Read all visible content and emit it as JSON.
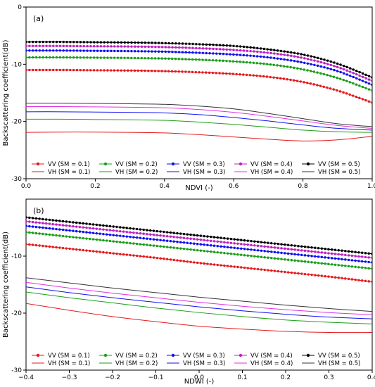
{
  "chart_data": [
    {
      "type": "line",
      "panel_label": "(a)",
      "xlabel": "NDVI (-)",
      "ylabel": "Backscattering coefficient(dB)",
      "xlim": [
        0,
        1
      ],
      "ylim": [
        -30,
        0
      ],
      "xticks": [
        0,
        0.2,
        0.4,
        0.6,
        0.8,
        1
      ],
      "xtick_labels": [
        "0.0",
        "0.2",
        "0.4",
        "0.6",
        "0.8",
        "1.0"
      ],
      "yticks": [
        -30,
        -20,
        -10,
        0
      ],
      "ytick_labels": [
        "-30",
        "-20",
        "-10",
        "0"
      ],
      "grid": false,
      "legend_position": "bottom",
      "series": [
        {
          "name": "VV (SM = 0.1)",
          "color": "#e41a1c",
          "marker": true,
          "x": [
            0,
            0.1,
            0.2,
            0.3,
            0.4,
            0.5,
            0.6,
            0.7,
            0.8,
            0.9,
            1.0
          ],
          "y": [
            -11.0,
            -11.0,
            -11.05,
            -11.1,
            -11.2,
            -11.4,
            -11.7,
            -12.2,
            -13.1,
            -14.6,
            -16.7
          ]
        },
        {
          "name": "VV (SM = 0.2)",
          "color": "#1a9e1a",
          "marker": true,
          "x": [
            0,
            0.1,
            0.2,
            0.3,
            0.4,
            0.5,
            0.6,
            0.7,
            0.8,
            0.9,
            1.0
          ],
          "y": [
            -8.8,
            -8.8,
            -8.85,
            -8.9,
            -9.0,
            -9.2,
            -9.5,
            -10.0,
            -10.9,
            -12.4,
            -14.6
          ]
        },
        {
          "name": "VV (SM = 0.3)",
          "color": "#1010ee",
          "marker": true,
          "x": [
            0,
            0.1,
            0.2,
            0.3,
            0.4,
            0.5,
            0.6,
            0.7,
            0.8,
            0.9,
            1.0
          ],
          "y": [
            -7.6,
            -7.6,
            -7.65,
            -7.7,
            -7.8,
            -8.0,
            -8.3,
            -8.8,
            -9.7,
            -11.2,
            -13.6
          ]
        },
        {
          "name": "VV (SM = 0.4)",
          "color": "#c020c0",
          "marker": true,
          "x": [
            0,
            0.1,
            0.2,
            0.3,
            0.4,
            0.5,
            0.6,
            0.7,
            0.8,
            0.9,
            1.0
          ],
          "y": [
            -6.8,
            -6.8,
            -6.85,
            -6.9,
            -7.0,
            -7.2,
            -7.5,
            -8.0,
            -8.9,
            -10.5,
            -12.9
          ]
        },
        {
          "name": "VV (SM = 0.5)",
          "color": "#000000",
          "marker": true,
          "x": [
            0,
            0.1,
            0.2,
            0.3,
            0.4,
            0.5,
            0.6,
            0.7,
            0.8,
            0.9,
            1.0
          ],
          "y": [
            -6.1,
            -6.1,
            -6.15,
            -6.2,
            -6.3,
            -6.5,
            -6.8,
            -7.4,
            -8.3,
            -9.9,
            -12.3
          ]
        },
        {
          "name": "VH (SM = 0.1)",
          "color": "#e41a1c",
          "marker": false,
          "x": [
            0,
            0.1,
            0.2,
            0.3,
            0.4,
            0.5,
            0.6,
            0.7,
            0.8,
            0.9,
            1.0
          ],
          "y": [
            -21.9,
            -21.85,
            -21.85,
            -21.9,
            -22.0,
            -22.3,
            -22.7,
            -23.1,
            -23.4,
            -23.2,
            -22.6
          ]
        },
        {
          "name": "VH (SM = 0.2)",
          "color": "#1a9e1a",
          "marker": false,
          "x": [
            0,
            0.1,
            0.2,
            0.3,
            0.4,
            0.5,
            0.6,
            0.7,
            0.8,
            0.9,
            1.0
          ],
          "y": [
            -19.6,
            -19.6,
            -19.65,
            -19.7,
            -19.8,
            -20.1,
            -20.5,
            -21.0,
            -21.5,
            -21.8,
            -21.9
          ]
        },
        {
          "name": "VH (SM = 0.3)",
          "color": "#1010ee",
          "marker": false,
          "x": [
            0,
            0.1,
            0.2,
            0.3,
            0.4,
            0.5,
            0.6,
            0.7,
            0.8,
            0.9,
            1.0
          ],
          "y": [
            -18.3,
            -18.3,
            -18.35,
            -18.4,
            -18.5,
            -18.8,
            -19.3,
            -19.9,
            -20.6,
            -21.2,
            -21.5
          ]
        },
        {
          "name": "VH (SM = 0.4)",
          "color": "#e030e0",
          "marker": false,
          "x": [
            0,
            0.1,
            0.2,
            0.3,
            0.4,
            0.5,
            0.6,
            0.7,
            0.8,
            0.9,
            1.0
          ],
          "y": [
            -17.4,
            -17.4,
            -17.45,
            -17.5,
            -17.6,
            -17.9,
            -18.4,
            -19.1,
            -19.9,
            -20.7,
            -21.2
          ]
        },
        {
          "name": "VH (SM = 0.5)",
          "color": "#333333",
          "marker": false,
          "x": [
            0,
            0.1,
            0.2,
            0.3,
            0.4,
            0.5,
            0.6,
            0.7,
            0.8,
            0.9,
            1.0
          ],
          "y": [
            -16.8,
            -16.8,
            -16.85,
            -16.9,
            -17.0,
            -17.3,
            -17.8,
            -18.6,
            -19.5,
            -20.4,
            -20.9
          ]
        }
      ]
    },
    {
      "type": "line",
      "panel_label": "(b)",
      "xlabel": "NDWI (-)",
      "ylabel": "Backscattering coefficient(dB)",
      "xlim": [
        -0.4,
        0.4
      ],
      "ylim": [
        -30,
        0
      ],
      "xticks": [
        -0.4,
        -0.3,
        -0.2,
        -0.1,
        0,
        0.1,
        0.2,
        0.3,
        0.4
      ],
      "xtick_labels": [
        "−0.4",
        "−0.3",
        "−0.2",
        "−0.1",
        "0.0",
        "0.1",
        "0.2",
        "0.3",
        "0.4"
      ],
      "yticks": [
        -30,
        -20,
        -10
      ],
      "ytick_labels": [
        "-30",
        "-20",
        "-10"
      ],
      "grid": false,
      "legend_position": "bottom",
      "series": [
        {
          "name": "VV (SM = 0.1)",
          "color": "#e41a1c",
          "marker": true,
          "x": [
            -0.4,
            -0.3,
            -0.2,
            -0.1,
            0,
            0.1,
            0.2,
            0.3,
            0.4
          ],
          "y": [
            -7.9,
            -8.7,
            -9.5,
            -10.3,
            -11.2,
            -12.0,
            -12.8,
            -13.6,
            -14.5
          ]
        },
        {
          "name": "VV (SM = 0.2)",
          "color": "#1a9e1a",
          "marker": true,
          "x": [
            -0.4,
            -0.3,
            -0.2,
            -0.1,
            0,
            0.1,
            0.2,
            0.3,
            0.4
          ],
          "y": [
            -5.8,
            -6.6,
            -7.4,
            -8.2,
            -9.0,
            -9.8,
            -10.6,
            -11.4,
            -12.2
          ]
        },
        {
          "name": "VV (SM = 0.3)",
          "color": "#1010ee",
          "marker": true,
          "x": [
            -0.4,
            -0.3,
            -0.2,
            -0.1,
            0,
            0.1,
            0.2,
            0.3,
            0.4
          ],
          "y": [
            -4.7,
            -5.5,
            -6.3,
            -7.1,
            -7.9,
            -8.7,
            -9.5,
            -10.3,
            -11.1
          ]
        },
        {
          "name": "VV (SM = 0.4)",
          "color": "#c020c0",
          "marker": true,
          "x": [
            -0.4,
            -0.3,
            -0.2,
            -0.1,
            0,
            0.1,
            0.2,
            0.3,
            0.4
          ],
          "y": [
            -3.9,
            -4.7,
            -5.5,
            -6.3,
            -7.1,
            -7.9,
            -8.7,
            -9.5,
            -10.3
          ]
        },
        {
          "name": "VV (SM = 0.5)",
          "color": "#000000",
          "marker": true,
          "x": [
            -0.4,
            -0.3,
            -0.2,
            -0.1,
            0,
            0.1,
            0.2,
            0.3,
            0.4
          ],
          "y": [
            -3.2,
            -4.0,
            -4.8,
            -5.6,
            -6.4,
            -7.2,
            -8.0,
            -8.8,
            -9.6
          ]
        },
        {
          "name": "VH (SM = 0.1)",
          "color": "#e41a1c",
          "marker": false,
          "x": [
            -0.4,
            -0.3,
            -0.2,
            -0.1,
            0,
            0.1,
            0.2,
            0.3,
            0.4
          ],
          "y": [
            -18.3,
            -19.5,
            -20.6,
            -21.5,
            -22.3,
            -22.8,
            -23.2,
            -23.4,
            -23.4
          ]
        },
        {
          "name": "VH (SM = 0.2)",
          "color": "#1a9e1a",
          "marker": false,
          "x": [
            -0.4,
            -0.3,
            -0.2,
            -0.1,
            0,
            0.1,
            0.2,
            0.3,
            0.4
          ],
          "y": [
            -16.3,
            -17.3,
            -18.2,
            -19.1,
            -19.9,
            -20.6,
            -21.2,
            -21.6,
            -21.9
          ]
        },
        {
          "name": "VH (SM = 0.3)",
          "color": "#1010ee",
          "marker": false,
          "x": [
            -0.4,
            -0.3,
            -0.2,
            -0.1,
            0,
            0.1,
            0.2,
            0.3,
            0.4
          ],
          "y": [
            -15.4,
            -16.4,
            -17.3,
            -18.1,
            -18.9,
            -19.6,
            -20.2,
            -20.7,
            -21.0
          ]
        },
        {
          "name": "VH (SM = 0.4)",
          "color": "#e030e0",
          "marker": false,
          "x": [
            -0.4,
            -0.3,
            -0.2,
            -0.1,
            0,
            0.1,
            0.2,
            0.3,
            0.4
          ],
          "y": [
            -14.6,
            -15.6,
            -16.5,
            -17.3,
            -18.1,
            -18.8,
            -19.4,
            -19.9,
            -20.3
          ]
        },
        {
          "name": "VH (SM = 0.5)",
          "color": "#333333",
          "marker": false,
          "x": [
            -0.4,
            -0.3,
            -0.2,
            -0.1,
            0,
            0.1,
            0.2,
            0.3,
            0.4
          ],
          "y": [
            -13.8,
            -14.7,
            -15.6,
            -16.4,
            -17.2,
            -17.9,
            -18.6,
            -19.2,
            -19.7
          ]
        }
      ]
    }
  ]
}
